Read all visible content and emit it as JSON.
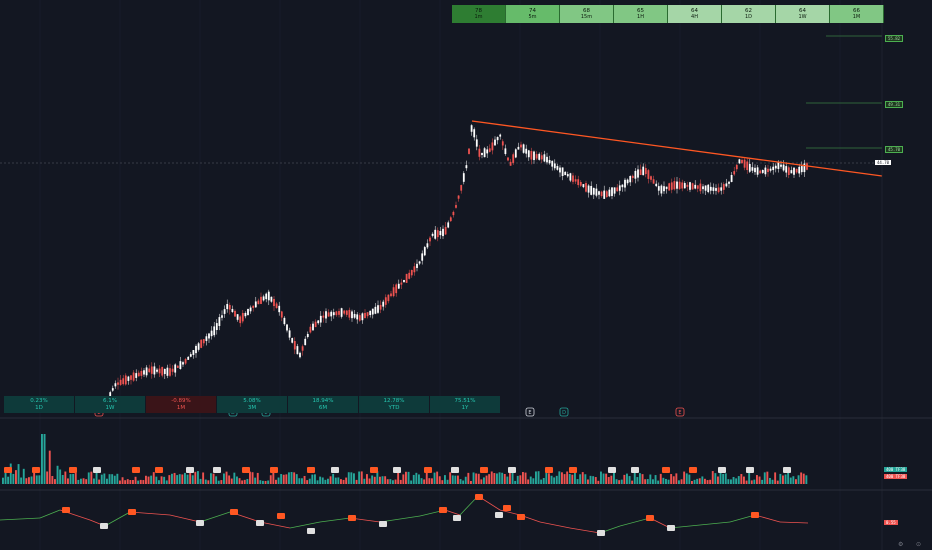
{
  "timeframes": [
    {
      "score": "78",
      "label": "1m",
      "color": "#2e7d32"
    },
    {
      "score": "74",
      "label": "5m",
      "color": "#66bb6a"
    },
    {
      "score": "68",
      "label": "15m",
      "color": "#81c784"
    },
    {
      "score": "65",
      "label": "1H",
      "color": "#81c784"
    },
    {
      "score": "64",
      "label": "4H",
      "color": "#a5d6a7"
    },
    {
      "score": "62",
      "label": "1D",
      "color": "#a5d6a7"
    },
    {
      "score": "64",
      "label": "1W",
      "color": "#a5d6a7"
    },
    {
      "score": "66",
      "label": "1M",
      "color": "#81c784"
    }
  ],
  "performance": [
    {
      "value": "0.23%",
      "label": "1D",
      "positive": true
    },
    {
      "value": "6.1%",
      "label": "1W",
      "positive": true
    },
    {
      "value": "-0.89%",
      "label": "1M",
      "positive": false
    },
    {
      "value": "5.08%",
      "label": "3M",
      "positive": true
    },
    {
      "value": "18.94%",
      "label": "6M",
      "positive": true
    },
    {
      "value": "12.78%",
      "label": "YTD",
      "positive": true
    },
    {
      "value": "75.51%",
      "label": "1Y",
      "positive": true
    }
  ],
  "price_scale": {
    "levels": [
      {
        "value": "55.82",
        "color": "#4caf50"
      },
      {
        "value": "49.31",
        "color": "#4caf50"
      },
      {
        "value": "45.70",
        "color": "#4caf50"
      }
    ],
    "current_price": "44.70",
    "volume_up_label": "400 TF38",
    "volume_down_label": "400 TF38",
    "indicator_label": "0.55"
  },
  "event_markers": [
    "E",
    "D",
    "E",
    "E",
    "D",
    "E"
  ],
  "colors": {
    "background": "#131722",
    "up_candle": "#ffffff",
    "down_candle": "#ef5350",
    "trendline": "#ff5722",
    "volume_up": "#26a69a",
    "volume_down": "#ef5350"
  }
}
